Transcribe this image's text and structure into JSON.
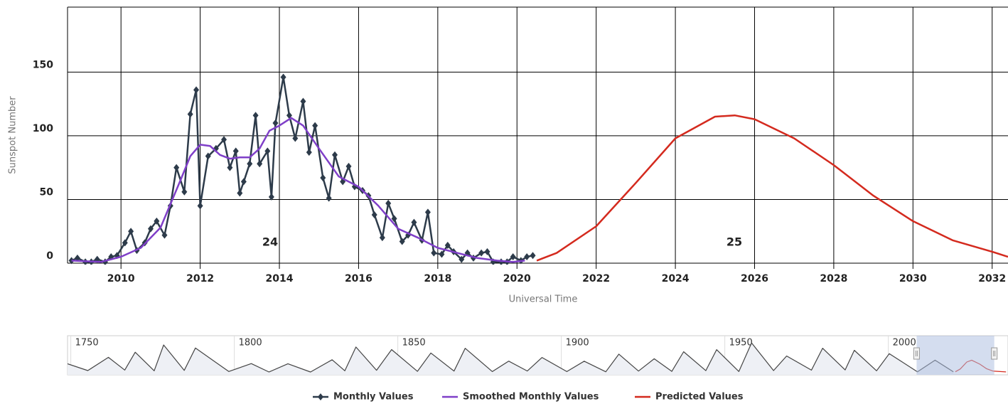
{
  "chart_data": [
    {
      "type": "line",
      "y_label": "Sunspot Number",
      "x_label": "Universal Time",
      "annotations": [
        "24",
        "25"
      ],
      "xlim": [
        2008.65,
        2032.4
      ],
      "xticks": [
        2010,
        2012,
        2014,
        2016,
        2018,
        2020,
        2022,
        2024,
        2026,
        2028,
        2030,
        2032
      ],
      "ylim": [
        0,
        201
      ],
      "yticks": [
        0,
        50,
        100,
        150
      ],
      "grid": true,
      "series": [
        {
          "name": "Monthly Values",
          "color": "#2d3b4a",
          "marker": "diamond",
          "x": [
            2008.75,
            2008.9,
            2009.1,
            2009.25,
            2009.4,
            2009.6,
            2009.75,
            2009.9,
            2010.1,
            2010.25,
            2010.4,
            2010.6,
            2010.75,
            2010.9,
            2011.1,
            2011.25,
            2011.4,
            2011.6,
            2011.75,
            2011.9,
            2012.0,
            2012.2,
            2012.4,
            2012.6,
            2012.75,
            2012.9,
            2013.0,
            2013.1,
            2013.25,
            2013.4,
            2013.5,
            2013.7,
            2013.8,
            2013.9,
            2014.1,
            2014.25,
            2014.4,
            2014.6,
            2014.75,
            2014.9,
            2015.1,
            2015.25,
            2015.4,
            2015.6,
            2015.75,
            2015.9,
            2016.1,
            2016.25,
            2016.4,
            2016.6,
            2016.75,
            2016.9,
            2017.1,
            2017.25,
            2017.4,
            2017.6,
            2017.75,
            2017.9,
            2018.1,
            2018.25,
            2018.4,
            2018.6,
            2018.75,
            2018.9,
            2019.1,
            2019.25,
            2019.4,
            2019.6,
            2019.75,
            2019.9,
            2020.1,
            2020.25,
            2020.4
          ],
          "values": [
            2,
            4,
            1,
            1,
            3,
            1,
            5,
            6,
            16,
            25,
            10,
            16,
            27,
            33,
            22,
            45,
            75,
            56,
            117,
            136,
            45,
            84,
            90,
            97,
            75,
            88,
            55,
            64,
            78,
            116,
            78,
            88,
            52,
            110,
            146,
            116,
            98,
            127,
            87,
            108,
            67,
            51,
            85,
            64,
            76,
            60,
            57,
            53,
            38,
            20,
            47,
            35,
            17,
            22,
            32,
            18,
            40,
            8,
            7,
            14,
            9,
            3,
            8,
            4,
            8,
            9,
            1,
            1,
            1,
            5,
            2,
            5,
            6
          ]
        },
        {
          "name": "Smoothed Monthly Values",
          "color": "#7f3fc8",
          "x": [
            2008.75,
            2009.5,
            2010,
            2010.5,
            2011,
            2011.5,
            2011.75,
            2012,
            2012.25,
            2012.5,
            2012.75,
            2013,
            2013.25,
            2013.5,
            2013.75,
            2014,
            2014.3,
            2014.6,
            2015,
            2015.5,
            2016,
            2016.5,
            2017,
            2017.5,
            2018,
            2018.5,
            2019,
            2019.5,
            2019.9,
            2020.2
          ],
          "values": [
            2,
            1,
            5,
            12,
            28,
            65,
            84,
            93,
            92,
            85,
            82,
            83,
            83,
            90,
            104,
            108,
            114,
            108,
            90,
            68,
            60,
            45,
            27,
            20,
            12,
            8,
            4,
            2,
            1,
            2
          ]
        },
        {
          "name": "Predicted Values",
          "color": "#d42a1e",
          "x": [
            2020.5,
            2021,
            2022,
            2023,
            2024,
            2025,
            2025.5,
            2026,
            2027,
            2028,
            2029,
            2030,
            2031,
            2032,
            2032.4
          ],
          "values": [
            2,
            8,
            29,
            63,
            98,
            115,
            116,
            113,
            98,
            77,
            53,
            33,
            18,
            9,
            5
          ]
        }
      ]
    },
    {
      "type": "line",
      "xlim": [
        1749,
        2036.6
      ],
      "xticks": [
        1750,
        1800,
        1850,
        1900,
        1950,
        2000
      ],
      "ylim": [
        0,
        300
      ],
      "series": [
        {
          "color": "#444444",
          "x": [
            1749,
            1755.2,
            1761.5,
            1766.5,
            1769.7,
            1775.5,
            1778.4,
            1784.7,
            1788.1,
            1798.3,
            1805.2,
            1810.6,
            1816.4,
            1823.3,
            1829.9,
            1833.8,
            1837.2,
            1843.5,
            1848.1,
            1856,
            1860.1,
            1867.2,
            1870.6,
            1878.9,
            1883.9,
            1889.6,
            1894.1,
            1901.7,
            1907,
            1913.6,
            1917.6,
            1923.6,
            1928.4,
            1933.8,
            1937.4,
            1944.2,
            1947.5,
            1954.3,
            1958.2,
            1964.9,
            1968.9,
            1976.5,
            1979.9,
            1986.8,
            1989.6,
            1996.4,
            2000.3,
            2008.9,
            2014.3,
            2019.9
          ],
          "values": [
            80,
            14,
            144,
            19,
            194,
            12,
            265,
            16,
            235,
            5,
            82,
            0,
            81,
            0,
            120,
            12,
            245,
            17,
            220,
            6,
            186,
            9,
            232,
            4,
            107,
            10,
            142,
            4,
            106,
            2,
            175,
            9,
            130,
            6,
            199,
            13,
            219,
            5,
            285,
            14,
            157,
            18,
            233,
            20,
            213,
            12,
            180,
            2,
            116,
            2
          ]
        },
        {
          "color": "#d42a1e",
          "x": [
            2020.5,
            2022,
            2024,
            2025.5,
            2028,
            2030,
            2032,
            2036
          ],
          "values": [
            2,
            29,
            98,
            116,
            77,
            33,
            9,
            1
          ]
        }
      ]
    }
  ]
}
